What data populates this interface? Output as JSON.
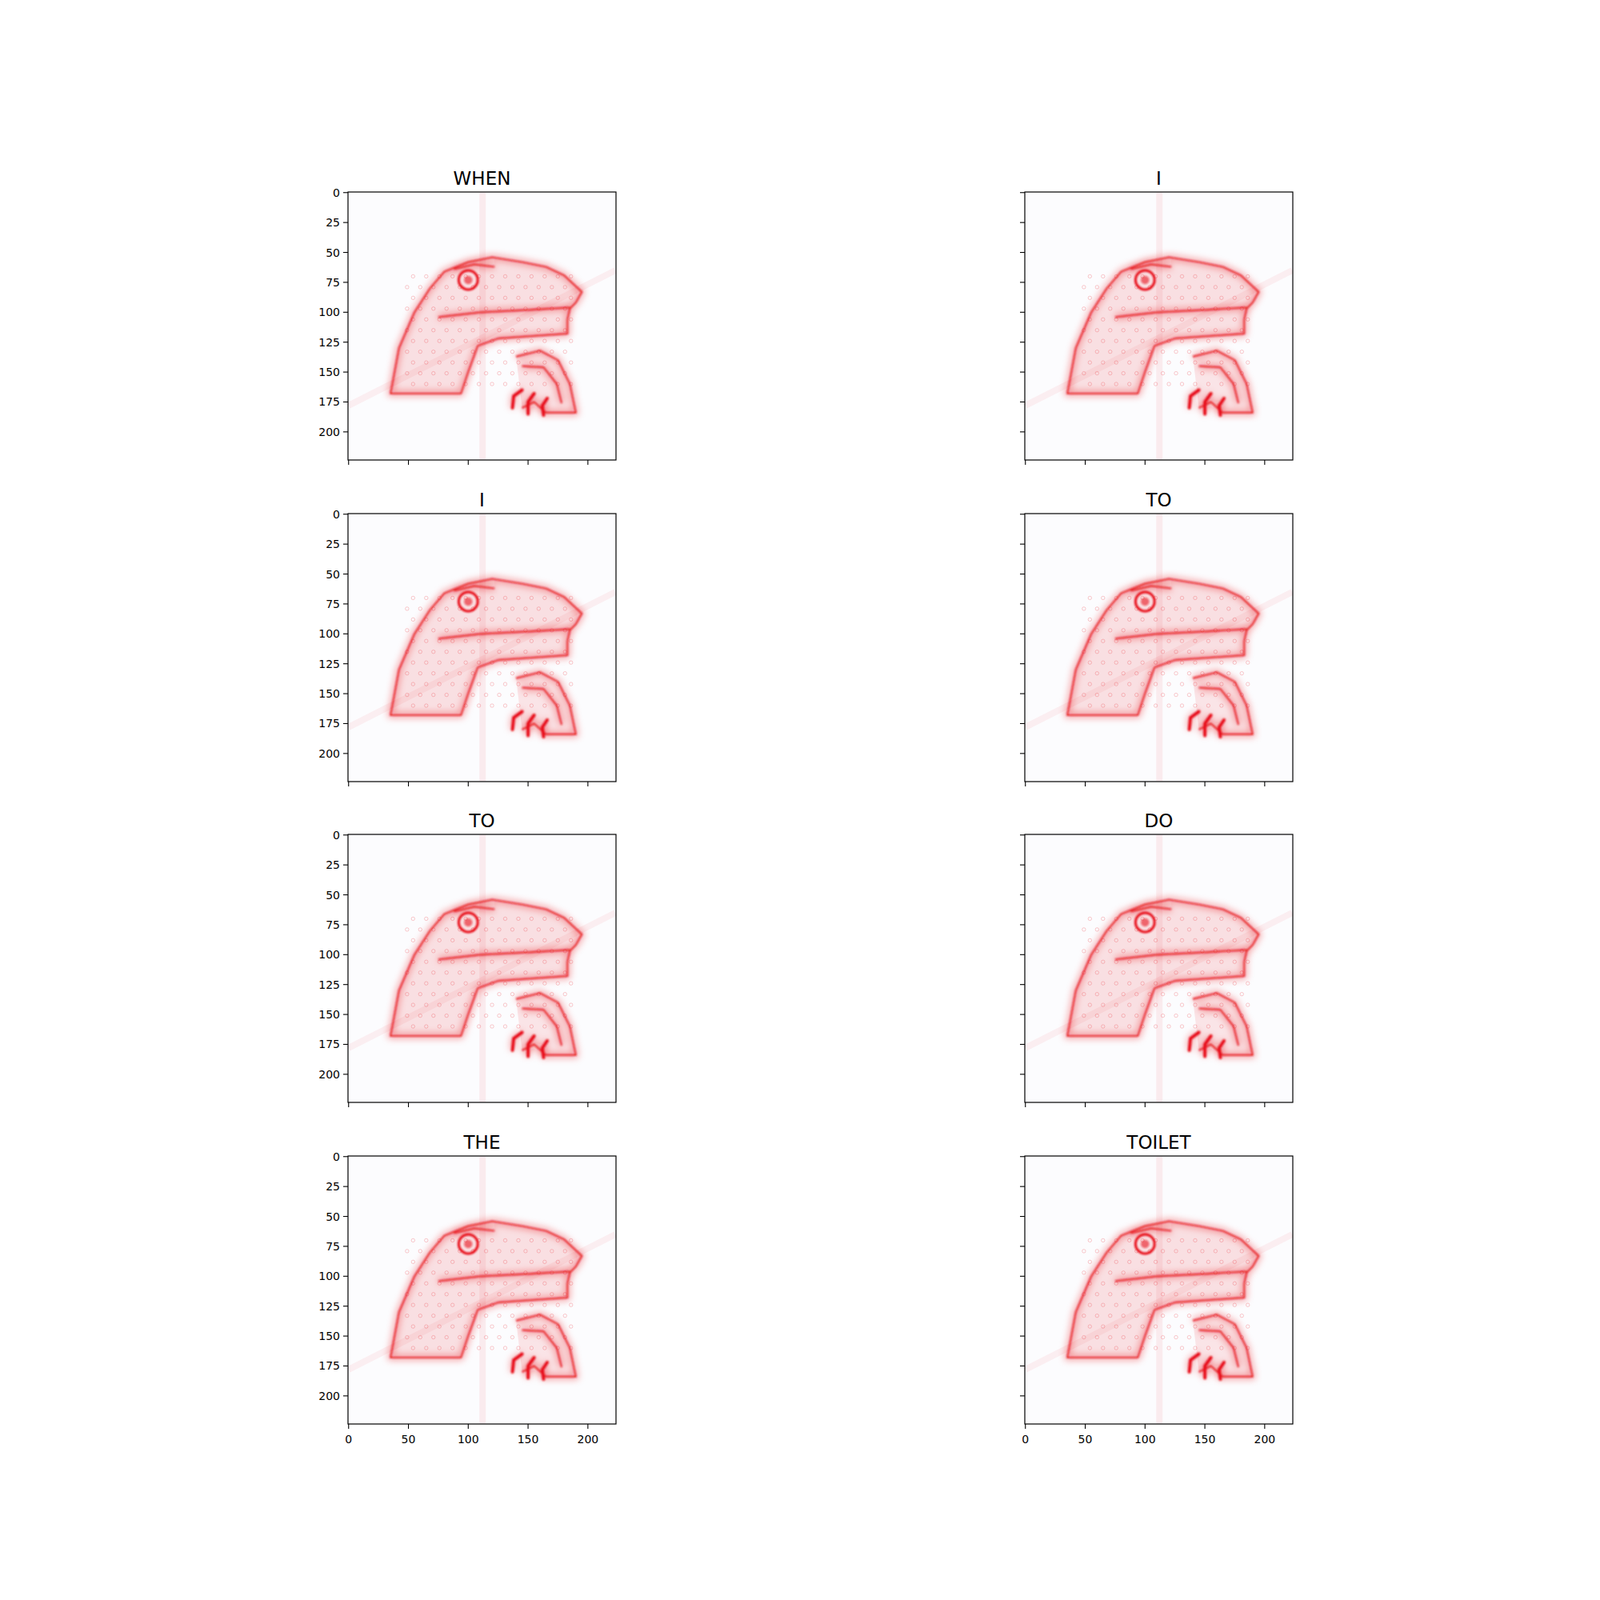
{
  "chart_data": [
    {
      "type": "image",
      "title": "WHEN",
      "color": "#e8101a",
      "xlim": [
        -0.5,
        223.5
      ],
      "ylim": [
        223.5,
        -0.5
      ],
      "xticks": [
        0,
        50,
        100,
        150,
        200
      ],
      "yticks": [
        0,
        25,
        50,
        75,
        100,
        125,
        150,
        175,
        200
      ],
      "tick_labels": "y"
    },
    {
      "type": "image",
      "title": "I",
      "color": "#e8101a",
      "xlim": [
        -0.5,
        223.5
      ],
      "ylim": [
        223.5,
        -0.5
      ],
      "xticks": [
        0,
        50,
        100,
        150,
        200
      ],
      "yticks": [
        0,
        25,
        50,
        75,
        100,
        125,
        150,
        175,
        200
      ],
      "tick_labels": false
    },
    {
      "type": "image",
      "title": "I",
      "color": "#e8101a",
      "xlim": [
        -0.5,
        223.5
      ],
      "ylim": [
        223.5,
        -0.5
      ],
      "xticks": [
        0,
        50,
        100,
        150,
        200
      ],
      "yticks": [
        0,
        25,
        50,
        75,
        100,
        125,
        150,
        175,
        200
      ],
      "tick_labels": "y"
    },
    {
      "type": "image",
      "title": "TO",
      "color": "#e8101a",
      "xlim": [
        -0.5,
        223.5
      ],
      "ylim": [
        223.5,
        -0.5
      ],
      "xticks": [
        0,
        50,
        100,
        150,
        200
      ],
      "yticks": [
        0,
        25,
        50,
        75,
        100,
        125,
        150,
        175,
        200
      ],
      "tick_labels": false
    },
    {
      "type": "image",
      "title": "TO",
      "color": "#e8101a",
      "xlim": [
        -0.5,
        223.5
      ],
      "ylim": [
        223.5,
        -0.5
      ],
      "xticks": [
        0,
        50,
        100,
        150,
        200
      ],
      "yticks": [
        0,
        25,
        50,
        75,
        100,
        125,
        150,
        175,
        200
      ],
      "tick_labels": "y"
    },
    {
      "type": "image",
      "title": "DO",
      "color": "#e8101a",
      "xlim": [
        -0.5,
        223.5
      ],
      "ylim": [
        223.5,
        -0.5
      ],
      "xticks": [
        0,
        50,
        100,
        150,
        200
      ],
      "yticks": [
        0,
        25,
        50,
        75,
        100,
        125,
        150,
        175,
        200
      ],
      "tick_labels": false
    },
    {
      "type": "image",
      "title": "THE",
      "color": "#e8101a",
      "xlim": [
        -0.5,
        223.5
      ],
      "ylim": [
        223.5,
        -0.5
      ],
      "xticks": [
        0,
        50,
        100,
        150,
        200
      ],
      "yticks": [
        0,
        25,
        50,
        75,
        100,
        125,
        150,
        175,
        200
      ],
      "tick_labels": true
    },
    {
      "type": "image",
      "title": "TOILET",
      "color": "#e8101a",
      "xlim": [
        -0.5,
        223.5
      ],
      "ylim": [
        223.5,
        -0.5
      ],
      "xticks": [
        0,
        50,
        100,
        150,
        200
      ],
      "yticks": [
        0,
        25,
        50,
        75,
        100,
        125,
        150,
        175,
        200
      ],
      "tick_labels": "x"
    }
  ]
}
